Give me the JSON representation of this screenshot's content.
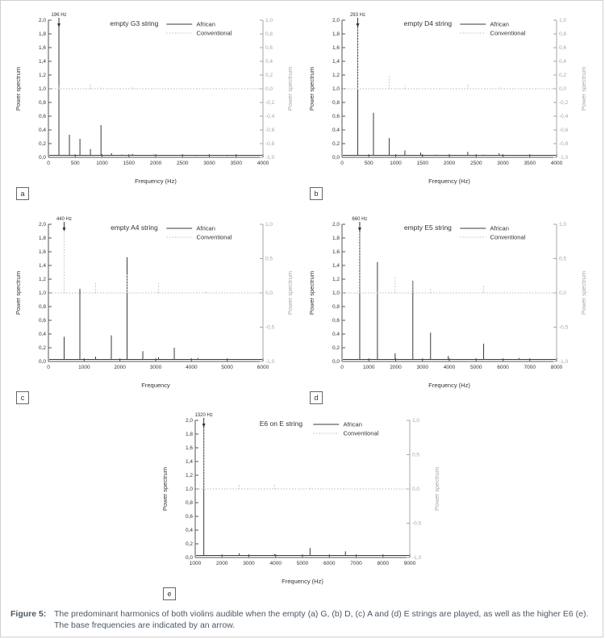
{
  "figure": {
    "caption_label": "Figure 5:",
    "caption_text": "The predominant harmonics of both violins audible when the empty (a) G, (b) D, (c) A and (d) E strings are played, as well as the higher E6 (e). The base frequencies are indicated by an arrow."
  },
  "colors": {
    "axis": "#555555",
    "text": "#333333",
    "right_axis": "#a6a6a6",
    "african": "#3a3a3a",
    "conventional": "#bcbcbc",
    "caption": "#4c5866",
    "border": "#cfcfcf"
  },
  "chart_data": [
    {
      "id": "a",
      "type": "line",
      "title": "empty G3 string",
      "annotation": "196 Hz",
      "annotation_x": 196,
      "xlabel": "Frequency (Hz)",
      "xmin": 0,
      "xmax": 4000,
      "xticks": [
        0,
        500,
        1000,
        1500,
        2000,
        2500,
        3000,
        3500,
        4000
      ],
      "left_axis": {
        "label": "Power spectrum",
        "min": 0,
        "max": 2,
        "tick_step": 0.2
      },
      "right_axis": {
        "label": "Power spectrum",
        "min": -1,
        "max": 1,
        "tick_step": 0.2
      },
      "series": [
        {
          "name": "African",
          "axis": "left",
          "style": "solid",
          "color": "#3a3a3a",
          "baseline": 0.03,
          "peaks": [
            [
              196,
              1.93
            ],
            [
              392,
              0.33
            ],
            [
              588,
              0.27
            ],
            [
              784,
              0.12
            ],
            [
              980,
              0.47
            ],
            [
              1176,
              0.06
            ],
            [
              1372,
              0.04
            ],
            [
              1568,
              0.05
            ],
            [
              1960,
              0.04
            ],
            [
              2352,
              0.03
            ],
            [
              2744,
              0.02
            ],
            [
              2940,
              0.03
            ],
            [
              3332,
              0.02
            ]
          ]
        },
        {
          "name": "Conventional",
          "axis": "right",
          "style": "dotted",
          "color": "#bcbcbc",
          "baseline": 0,
          "peaks": [
            [
              196,
              0.05
            ],
            [
              784,
              0.08
            ],
            [
              980,
              0.04
            ],
            [
              1568,
              0.02
            ]
          ]
        }
      ]
    },
    {
      "id": "b",
      "type": "line",
      "title": "empty D4 string",
      "annotation": "293 Hz",
      "annotation_x": 293,
      "xlabel": "Frequency (Hz)",
      "xmin": 0,
      "xmax": 4000,
      "xticks": [
        0,
        500,
        1000,
        1500,
        2000,
        2500,
        3000,
        3500,
        4000
      ],
      "left_axis": {
        "label": "Power spectrum",
        "min": 0,
        "max": 2,
        "tick_step": 0.2
      },
      "right_axis": {
        "label": "Power spectrum",
        "min": -1,
        "max": 1,
        "tick_step": 0.2
      },
      "series": [
        {
          "name": "African",
          "axis": "left",
          "style": "solid",
          "color": "#3a3a3a",
          "baseline": 0.03,
          "peaks": [
            [
              293,
              1.95
            ],
            [
              586,
              0.65
            ],
            [
              879,
              0.28
            ],
            [
              1172,
              0.1
            ],
            [
              1465,
              0.07
            ],
            [
              1758,
              0.04
            ],
            [
              2344,
              0.08
            ],
            [
              2637,
              0.04
            ],
            [
              2930,
              0.06
            ]
          ]
        },
        {
          "name": "Conventional",
          "axis": "right",
          "style": "dotted",
          "color": "#bcbcbc",
          "baseline": 0,
          "peaks": [
            [
              293,
              1.0
            ],
            [
              879,
              0.2
            ],
            [
              1172,
              0.05
            ],
            [
              2344,
              0.06
            ],
            [
              2930,
              0.03
            ]
          ]
        }
      ]
    },
    {
      "id": "c",
      "type": "line",
      "title": "empty A4 string",
      "annotation": "440 Hz",
      "annotation_x": 440,
      "xlabel": "Frequency",
      "xmin": 0,
      "xmax": 6000,
      "xticks": [
        0,
        1000,
        2000,
        3000,
        4000,
        5000,
        6000
      ],
      "left_axis": {
        "label": "Power spectrum",
        "min": 0,
        "max": 2,
        "tick_step": 0.2
      },
      "right_axis": {
        "label": "Power spectrum",
        "min": -1,
        "max": 1,
        "tick_step": 0.5
      },
      "series": [
        {
          "name": "African",
          "axis": "left",
          "style": "solid",
          "color": "#3a3a3a",
          "baseline": 0.03,
          "peaks": [
            [
              440,
              0.36
            ],
            [
              880,
              1.06
            ],
            [
              1320,
              0.07
            ],
            [
              1760,
              0.38
            ],
            [
              2200,
              1.52
            ],
            [
              2640,
              0.15
            ],
            [
              3080,
              0.06
            ],
            [
              3520,
              0.2
            ],
            [
              4180,
              0.05
            ]
          ]
        },
        {
          "name": "Conventional",
          "axis": "right",
          "style": "dotted",
          "color": "#bcbcbc",
          "baseline": 0,
          "peaks": [
            [
              440,
              1.0
            ],
            [
              1320,
              0.16
            ],
            [
              2200,
              0.27
            ],
            [
              3080,
              0.14
            ],
            [
              4400,
              0.04
            ]
          ]
        }
      ]
    },
    {
      "id": "d",
      "type": "line",
      "title": "empty E5 string",
      "annotation": "660 Hz",
      "annotation_x": 660,
      "xlabel": "Frequency (Hz)",
      "xmin": 0,
      "xmax": 8000,
      "xticks": [
        0,
        1000,
        2000,
        3000,
        4000,
        5000,
        6000,
        7000,
        8000
      ],
      "left_axis": {
        "label": "Power spectrum",
        "min": 0,
        "max": 2,
        "tick_step": 0.2
      },
      "right_axis": {
        "label": "Power spectrum",
        "min": -1,
        "max": 1,
        "tick_step": 0.5
      },
      "series": [
        {
          "name": "African",
          "axis": "left",
          "style": "solid",
          "color": "#3a3a3a",
          "baseline": 0.03,
          "peaks": [
            [
              660,
              1.92
            ],
            [
              1320,
              1.45
            ],
            [
              1980,
              0.12
            ],
            [
              2640,
              1.18
            ],
            [
              3300,
              0.42
            ],
            [
              3960,
              0.08
            ],
            [
              5280,
              0.26
            ],
            [
              6600,
              0.05
            ]
          ]
        },
        {
          "name": "Conventional",
          "axis": "right",
          "style": "dotted",
          "color": "#bcbcbc",
          "baseline": 0,
          "peaks": [
            [
              660,
              1.0
            ],
            [
              1980,
              0.24
            ],
            [
              2640,
              0.18
            ],
            [
              3300,
              0.06
            ],
            [
              5280,
              0.12
            ]
          ]
        }
      ]
    },
    {
      "id": "e",
      "type": "line",
      "title": "E6 on E string",
      "annotation": "1320 Hz",
      "annotation_x": 1320,
      "xlabel": "Frequency (Hz)",
      "xmin": 1000,
      "xmax": 9000,
      "xticks": [
        1000,
        2000,
        3000,
        4000,
        5000,
        6000,
        7000,
        8000,
        9000
      ],
      "left_axis": {
        "label": "Power spectrum",
        "min": 0,
        "max": 2,
        "tick_step": 0.2
      },
      "right_axis": {
        "label": "Power spectrum",
        "min": -1,
        "max": 1,
        "tick_step": 0.5
      },
      "series": [
        {
          "name": "African",
          "axis": "left",
          "style": "solid",
          "color": "#3a3a3a",
          "baseline": 0.03,
          "peaks": [
            [
              1320,
              1.95
            ],
            [
              2640,
              0.06
            ],
            [
              3960,
              0.05
            ],
            [
              5280,
              0.14
            ],
            [
              6600,
              0.09
            ],
            [
              7920,
              0.03
            ]
          ]
        },
        {
          "name": "Conventional",
          "axis": "right",
          "style": "dotted",
          "color": "#bcbcbc",
          "baseline": 0,
          "peaks": [
            [
              1320,
              0.92
            ],
            [
              2640,
              0.08
            ],
            [
              3960,
              0.07
            ],
            [
              5280,
              0.03
            ]
          ]
        }
      ]
    }
  ]
}
